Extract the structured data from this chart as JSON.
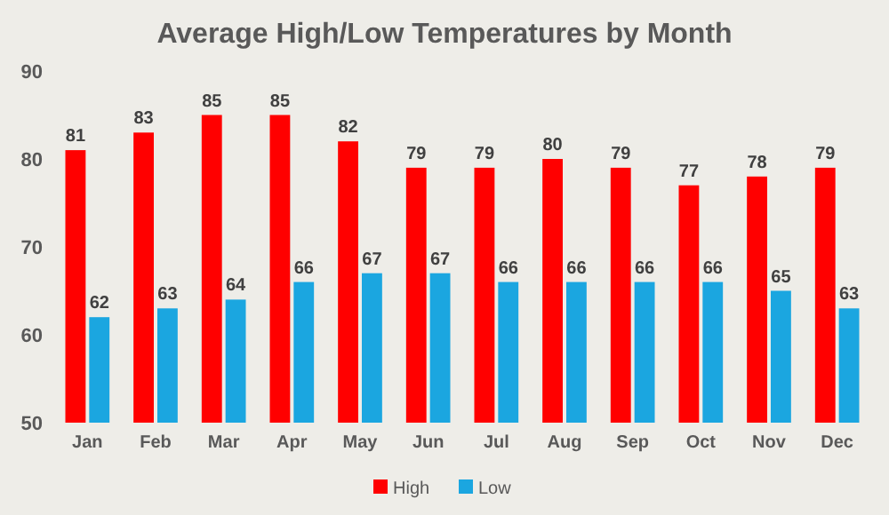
{
  "chart_data": {
    "type": "bar",
    "title": "Average High/Low Temperatures by Month",
    "categories": [
      "Jan",
      "Feb",
      "Mar",
      "Apr",
      "May",
      "Jun",
      "Jul",
      "Aug",
      "Sep",
      "Oct",
      "Nov",
      "Dec"
    ],
    "series": [
      {
        "name": "High",
        "color": "#ff0000",
        "values": [
          81,
          83,
          85,
          85,
          82,
          79,
          79,
          80,
          79,
          77,
          78,
          79
        ]
      },
      {
        "name": "Low",
        "color": "#1ba6e0",
        "values": [
          62,
          63,
          64,
          66,
          67,
          67,
          66,
          66,
          66,
          66,
          65,
          63
        ]
      }
    ],
    "ylim": [
      50,
      90
    ],
    "yticks": [
      50,
      60,
      70,
      80,
      90
    ],
    "grid": false,
    "legend": "bottom",
    "data_labels": true
  }
}
